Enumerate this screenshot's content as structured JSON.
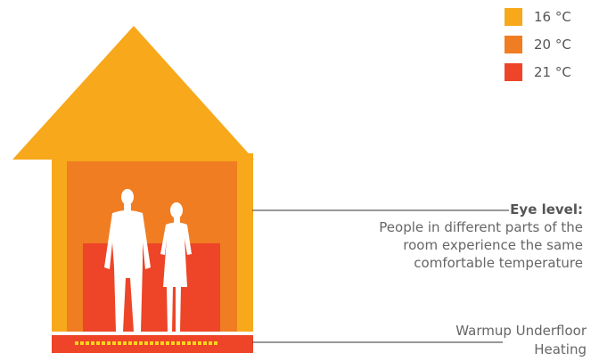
{
  "legend": {
    "items": [
      {
        "label": "16 °C",
        "color": "#F7A81B"
      },
      {
        "label": "20 °C",
        "color": "#F07D22"
      },
      {
        "label": "21 °C",
        "color": "#EE4427"
      }
    ]
  },
  "annotations": {
    "eye_level_title": "Eye level:",
    "eye_level_description": "People in different parts of the room experience the same comfortable temperature",
    "floor_label": "Warmup Underfloor Heating"
  },
  "colors": {
    "zone_16": "#F7A81B",
    "zone_20": "#F07D22",
    "zone_21": "#EE4427",
    "people": "#ffffff",
    "heating_dots": "#F7D51E",
    "leader_line": "#333333"
  }
}
